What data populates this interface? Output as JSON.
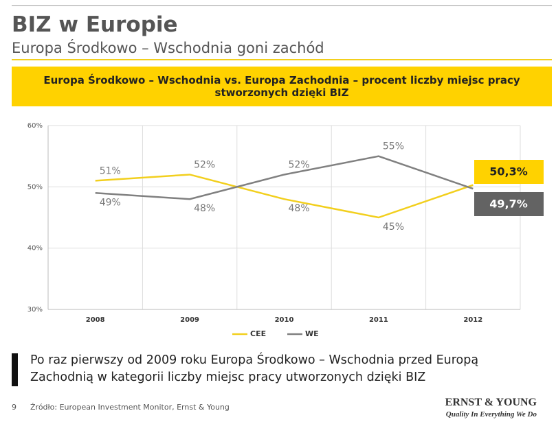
{
  "slide_title": "BIZ w Europie",
  "slide_subtitle": "Europa Środkowo – Wschodnia goni zachód",
  "conclusion": "Po raz pierwszy od 2009 roku Europa Środkowo – Wschodnia przed Europą Zachodnią w kategorii liczby miejsc pracy utworzonych dzięki BIZ",
  "page_number": "9",
  "source": "Źródło: European Investment Monitor, Ernst & Young",
  "logo": "ERNST & YOUNG",
  "tagline": "Quality In Everything We Do",
  "chart_data": {
    "type": "line",
    "title": "Europa Środkowo – Wschodnia vs. Europa Zachodnia – procent liczby miejsc pracy stworzonych dzięki BIZ",
    "categories": [
      "2008",
      "2009",
      "2010",
      "2011",
      "2012"
    ],
    "series": [
      {
        "name": "CEE",
        "color": "#f2cf1d",
        "values": [
          51,
          52,
          48,
          45,
          50.3
        ],
        "value_labels": [
          "51%",
          "52%",
          "48%",
          "45%",
          "50,3%"
        ]
      },
      {
        "name": "WE",
        "color": "#808080",
        "values": [
          49,
          48,
          52,
          55,
          49.7
        ],
        "value_labels": [
          "49%",
          "48%",
          "52%",
          "55%",
          "49,7%"
        ]
      }
    ],
    "ylim": [
      30,
      60
    ],
    "yticks": [
      {
        "value": 30,
        "label": "30%"
      },
      {
        "value": 40,
        "label": "40%"
      },
      {
        "value": 50,
        "label": "50%"
      },
      {
        "value": 60,
        "label": "60%"
      }
    ],
    "grid": true
  }
}
